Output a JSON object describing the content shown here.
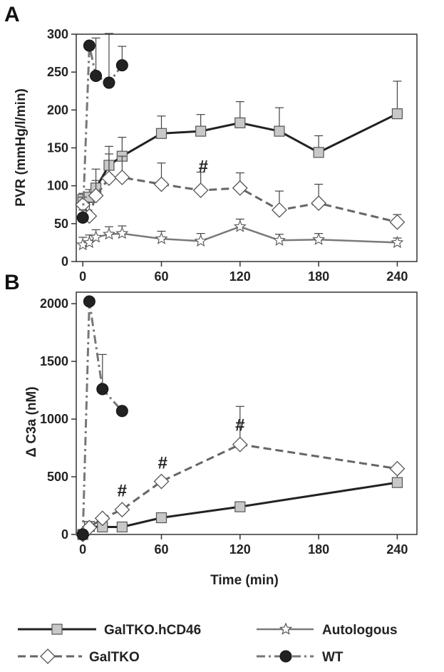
{
  "panels": [
    {
      "id": "A",
      "letter": "A",
      "ylabel": "PVR (mmHg/l/min)",
      "xlabel": "",
      "ylim": [
        0,
        300
      ],
      "xlim": [
        -5,
        255
      ],
      "yticks": [
        0,
        50,
        100,
        150,
        200,
        250,
        300
      ],
      "xticks": [
        0,
        60,
        120,
        180,
        240
      ],
      "annotations": [
        {
          "text": "#",
          "x": 92,
          "y": 118
        }
      ]
    },
    {
      "id": "B",
      "letter": "B",
      "ylabel": "Δ C3a (nM)",
      "xlabel": "Time (min)",
      "ylim": [
        0,
        2100
      ],
      "xlim": [
        -5,
        255
      ],
      "yticks": [
        0,
        500,
        1000,
        1500,
        2000
      ],
      "xticks": [
        0,
        60,
        120,
        180,
        240
      ],
      "annotations": [
        {
          "text": "#",
          "x": 30,
          "y": 330
        },
        {
          "text": "#",
          "x": 61,
          "y": 570
        },
        {
          "text": "#",
          "x": 120,
          "y": 900
        }
      ]
    }
  ],
  "legend": [
    {
      "label": "GalTKO.hCD46",
      "series": "galtko_hcd46"
    },
    {
      "label": "Autologous",
      "series": "autologous"
    },
    {
      "label": "GalTKO",
      "series": "galtko"
    },
    {
      "label": "WT",
      "series": "wt"
    }
  ],
  "styles": {
    "galtko_hcd46": {
      "color": "#222222",
      "dash": "",
      "marker": "square",
      "fill": "#c8c8c8"
    },
    "galtko": {
      "color": "#666666",
      "dash": "11,6",
      "marker": "diamond",
      "fill": "#ffffff"
    },
    "autologous": {
      "color": "#7a7a7a",
      "dash": "",
      "marker": "star",
      "fill": "#ffffff"
    },
    "wt": {
      "color": "#777777",
      "dash": "12,5,3,5",
      "marker": "circle",
      "fill": "#222222"
    }
  },
  "chart_data": [
    {
      "type": "line",
      "panel": "A",
      "ylabel": "PVR (mmHg/l/min)",
      "ylim": [
        0,
        300
      ],
      "series": [
        {
          "name": "GalTKO.hCD46",
          "key": "galtko_hcd46",
          "x": [
            0,
            5,
            10,
            20,
            30,
            60,
            90,
            120,
            150,
            180,
            240
          ],
          "y": [
            82,
            85,
            97,
            127,
            139,
            169,
            172,
            183,
            172,
            144,
            195
          ],
          "err": [
            8,
            10,
            25,
            25,
            25,
            23,
            22,
            28,
            31,
            22,
            43
          ]
        },
        {
          "name": "GalTKO",
          "key": "galtko",
          "x": [
            0,
            5,
            10,
            20,
            30,
            60,
            90,
            120,
            150,
            180,
            240
          ],
          "y": [
            75,
            60,
            87,
            110,
            111,
            102,
            94,
            97,
            68,
            77,
            52
          ],
          "err": [
            10,
            18,
            20,
            32,
            28,
            28,
            24,
            20,
            25,
            25,
            10
          ]
        },
        {
          "name": "Autologous",
          "key": "autologous",
          "x": [
            0,
            5,
            10,
            20,
            30,
            60,
            90,
            120,
            150,
            180,
            240
          ],
          "y": [
            22,
            25,
            32,
            36,
            37,
            30,
            27,
            46,
            28,
            29,
            25
          ],
          "err": [
            10,
            10,
            10,
            10,
            10,
            10,
            10,
            10,
            8,
            8,
            6
          ]
        },
        {
          "name": "WT",
          "key": "wt",
          "x": [
            0,
            5,
            10,
            20,
            30
          ],
          "y": [
            58,
            285,
            245,
            236,
            259
          ],
          "err": [
            10,
            0,
            50,
            65,
            25
          ]
        }
      ]
    },
    {
      "type": "line",
      "panel": "B",
      "xlabel": "Time (min)",
      "ylabel": "Δ C3a (nM)",
      "ylim": [
        0,
        2100
      ],
      "series": [
        {
          "name": "GalTKO.hCD46",
          "key": "galtko_hcd46",
          "x": [
            0,
            5,
            15,
            30,
            60,
            120,
            240
          ],
          "y": [
            0,
            70,
            65,
            65,
            145,
            240,
            450
          ],
          "err": [
            0,
            0,
            0,
            0,
            0,
            0,
            130
          ]
        },
        {
          "name": "GalTKO",
          "key": "galtko",
          "x": [
            0,
            5,
            15,
            30,
            60,
            120,
            240
          ],
          "y": [
            0,
            60,
            140,
            215,
            460,
            780,
            570
          ],
          "err": [
            0,
            0,
            0,
            0,
            0,
            330,
            0
          ]
        },
        {
          "name": "Autologous",
          "key": "autologous",
          "x": [
            0
          ],
          "y": [
            0
          ],
          "err": [
            0
          ]
        },
        {
          "name": "WT",
          "key": "wt",
          "x": [
            0,
            5,
            15,
            30
          ],
          "y": [
            0,
            2020,
            1260,
            1070
          ],
          "err": [
            0,
            0,
            300,
            0
          ]
        }
      ]
    }
  ]
}
